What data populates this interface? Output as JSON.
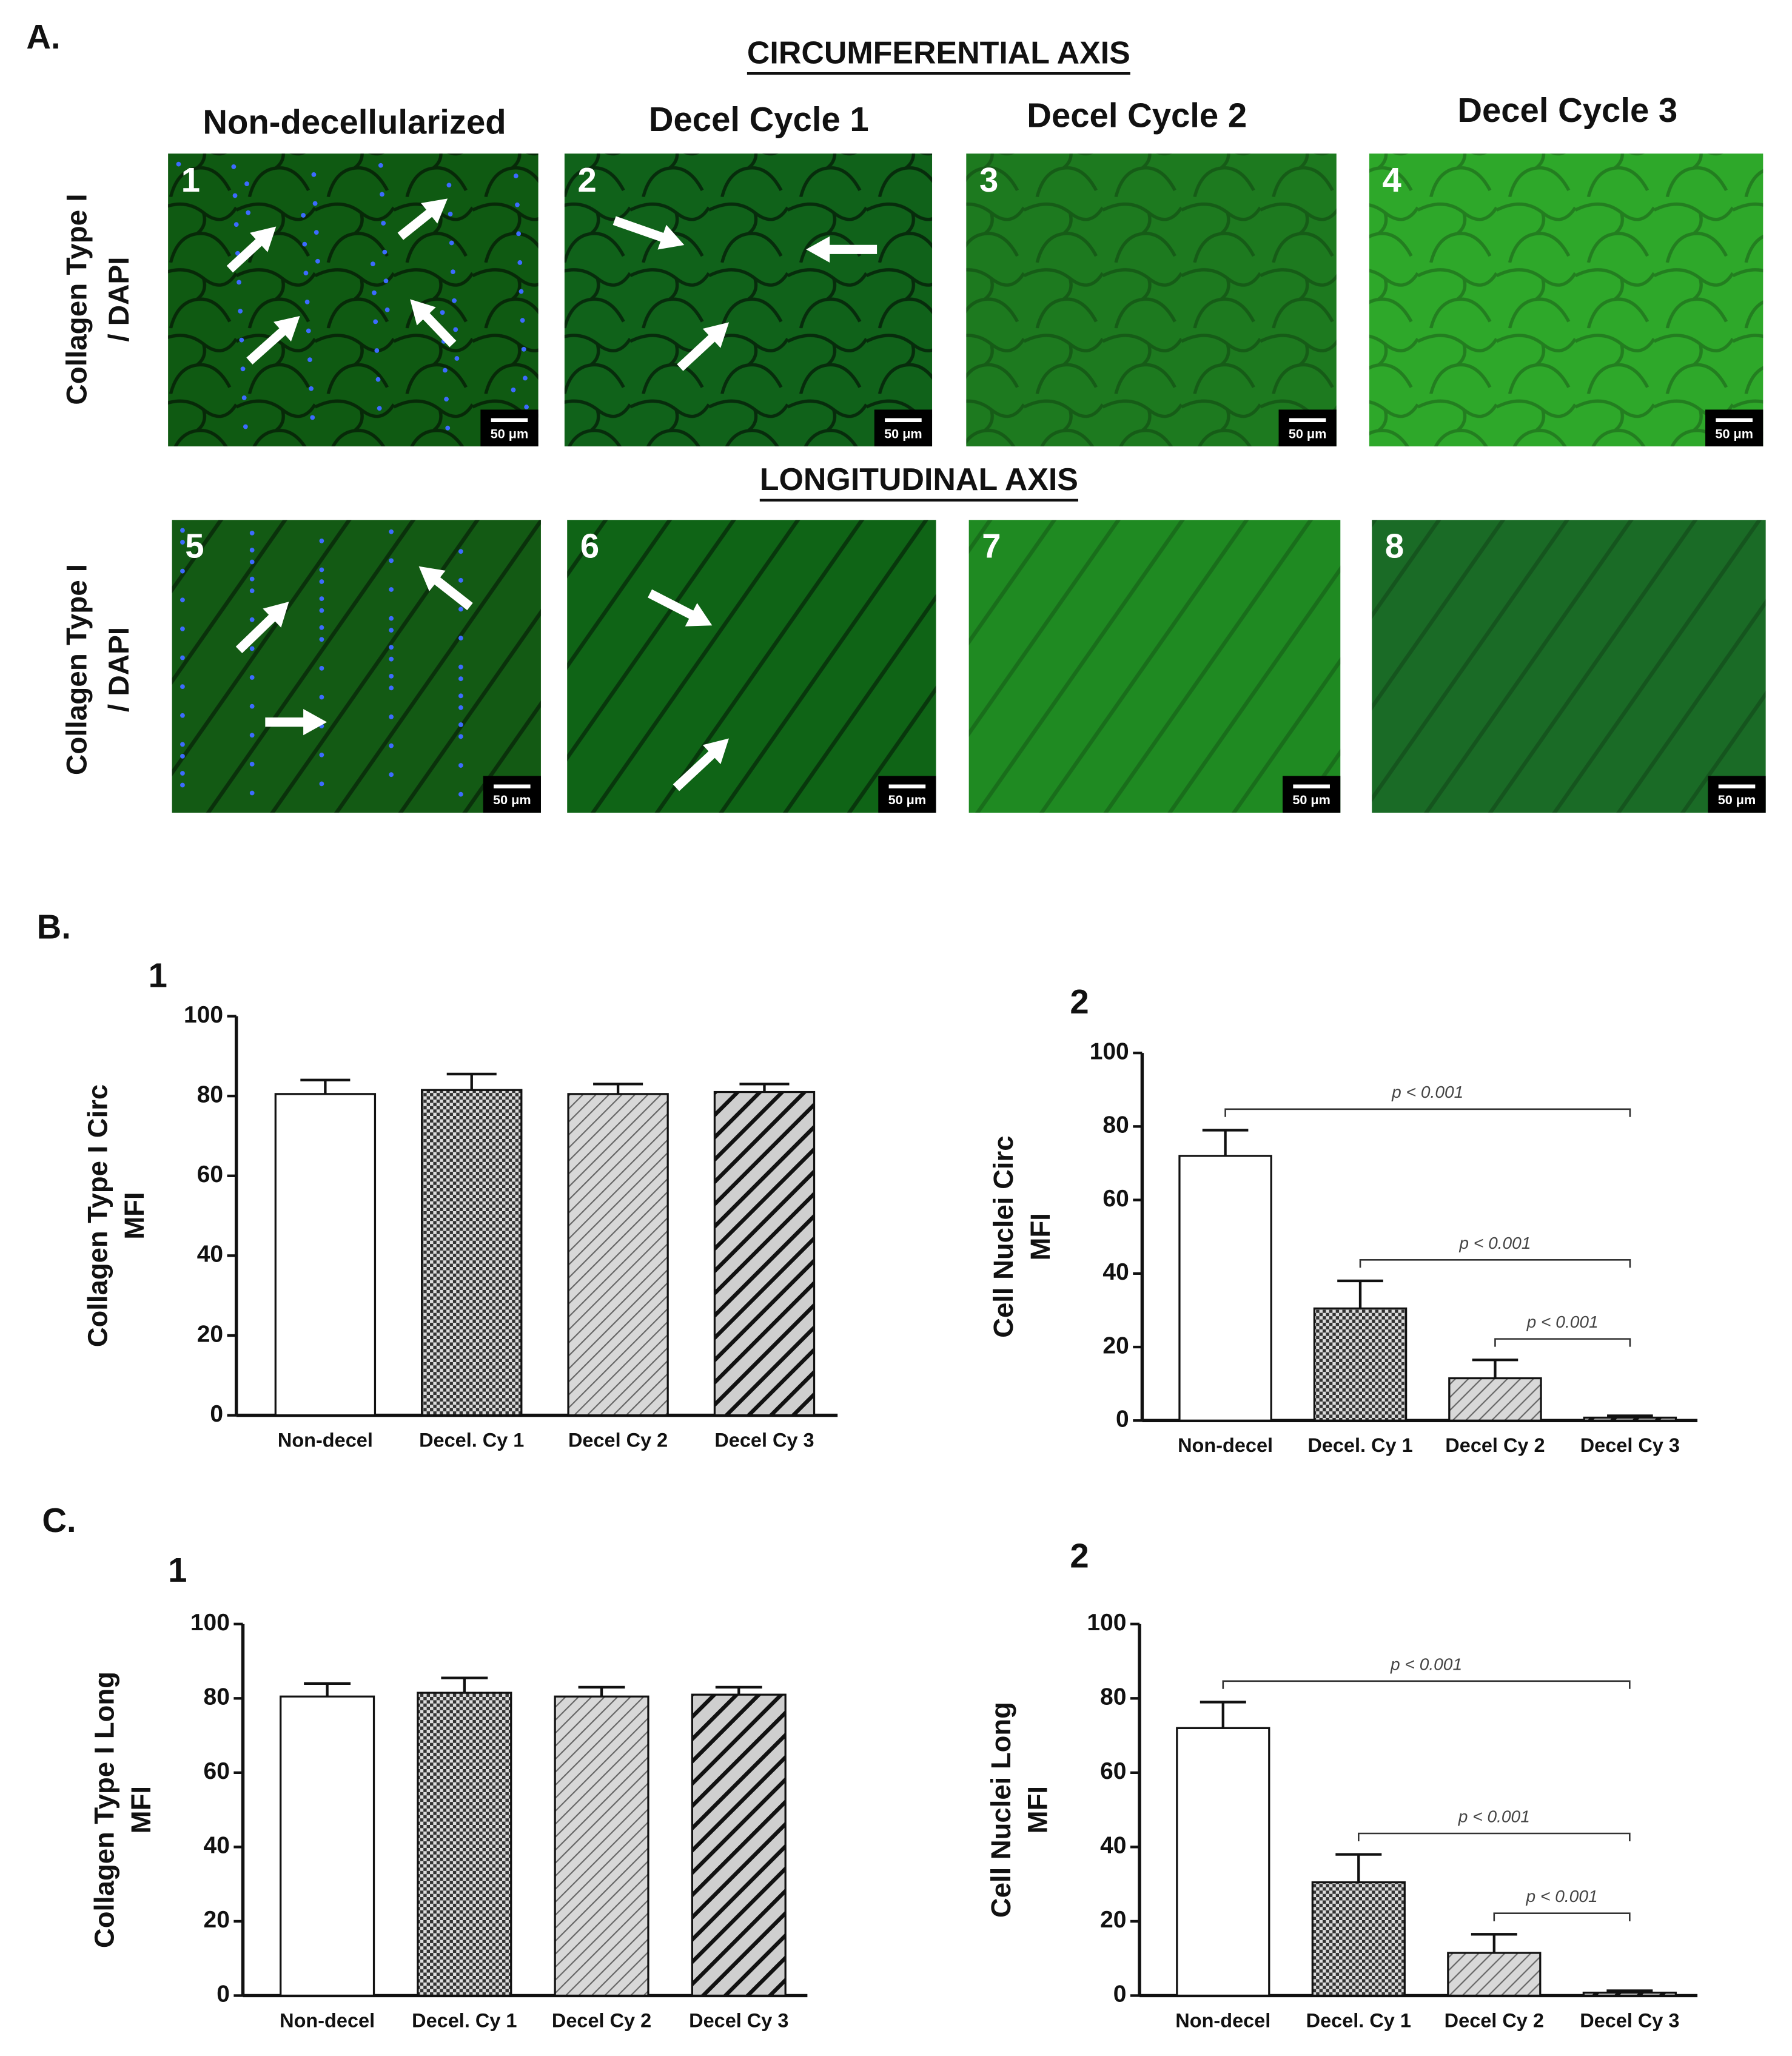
{
  "panel_a": {
    "label": "A.",
    "sections": [
      {
        "title": "CIRCUMFERENTIAL AXIS",
        "row_label": [
          "Collagen Type I",
          "/ DAPI"
        ]
      },
      {
        "title": "LONGITUDINAL AXIS",
        "row_label": [
          "Collagen Type I",
          "/ DAPI"
        ]
      }
    ],
    "columns": [
      "Non-decellularized",
      "Decel Cycle 1",
      "Decel Cycle 2",
      "Decel Cycle 3"
    ],
    "images": [
      {
        "number": "1",
        "scale_bar": "50 μm"
      },
      {
        "number": "2",
        "scale_bar": "50 μm"
      },
      {
        "number": "3",
        "scale_bar": "50 μm"
      },
      {
        "number": "4",
        "scale_bar": "50 μm"
      },
      {
        "number": "5",
        "scale_bar": "50 μm"
      },
      {
        "number": "6",
        "scale_bar": "50 μm"
      },
      {
        "number": "7",
        "scale_bar": "50 μm"
      },
      {
        "number": "8",
        "scale_bar": "50 μm"
      }
    ]
  },
  "panel_b_label": "B.",
  "panel_c_label": "C.",
  "chart_data": [
    {
      "type": "bar",
      "panel_label": "1",
      "ylabel": [
        "Collagen Type I Circ",
        "MFI"
      ],
      "categories": [
        "Non-decel",
        "Decel. Cy 1",
        "Decel Cy 2",
        "Decel Cy 3"
      ],
      "values": [
        80.5,
        81.5,
        80.5,
        81
      ],
      "errors": [
        3.5,
        4,
        2.5,
        2
      ],
      "patterns": [
        "none",
        "crosshatch",
        "hatch-light",
        "hatch-bold"
      ],
      "ylim": [
        0,
        100
      ],
      "yticks": [
        0,
        20,
        40,
        60,
        80,
        100
      ],
      "annotations": []
    },
    {
      "type": "bar",
      "panel_label": "2",
      "ylabel": [
        "Cell Nuclei Circ",
        "MFI"
      ],
      "categories": [
        "Non-decel",
        "Decel. Cy 1",
        "Decel Cy 2",
        "Decel Cy 3"
      ],
      "values": [
        72,
        30.5,
        11.5,
        0.8
      ],
      "errors": [
        7,
        7.5,
        5,
        0.5
      ],
      "patterns": [
        "none",
        "crosshatch",
        "hatch-light",
        "hatch-bold"
      ],
      "ylim": [
        0,
        100
      ],
      "yticks": [
        0,
        20,
        40,
        60,
        80,
        100
      ],
      "annotations": [
        "p < 0.001",
        "p < 0.001",
        "p < 0.001"
      ]
    },
    {
      "type": "bar",
      "panel_label": "1",
      "ylabel": [
        "Collagen Type I Long",
        "MFI"
      ],
      "categories": [
        "Non-decel",
        "Decel. Cy 1",
        "Decel Cy 2",
        "Decel Cy 3"
      ],
      "values": [
        80.5,
        81.5,
        80.5,
        81
      ],
      "errors": [
        3.5,
        4,
        2.5,
        2
      ],
      "patterns": [
        "none",
        "crosshatch",
        "hatch-light",
        "hatch-bold"
      ],
      "ylim": [
        0,
        100
      ],
      "yticks": [
        0,
        20,
        40,
        60,
        80,
        100
      ],
      "annotations": []
    },
    {
      "type": "bar",
      "panel_label": "2",
      "ylabel": [
        "Cell Nuclei Long",
        "MFI"
      ],
      "categories": [
        "Non-decel",
        "Decel. Cy 1",
        "Decel Cy 2",
        "Decel Cy 3"
      ],
      "values": [
        72,
        30.5,
        11.5,
        0.8
      ],
      "errors": [
        7,
        7.5,
        5,
        0.5
      ],
      "patterns": [
        "none",
        "crosshatch",
        "hatch-light",
        "hatch-bold"
      ],
      "ylim": [
        0,
        100
      ],
      "yticks": [
        0,
        20,
        40,
        60,
        80,
        100
      ],
      "annotations": [
        "p < 0.001",
        "p < 0.001",
        "p < 0.001"
      ]
    }
  ]
}
